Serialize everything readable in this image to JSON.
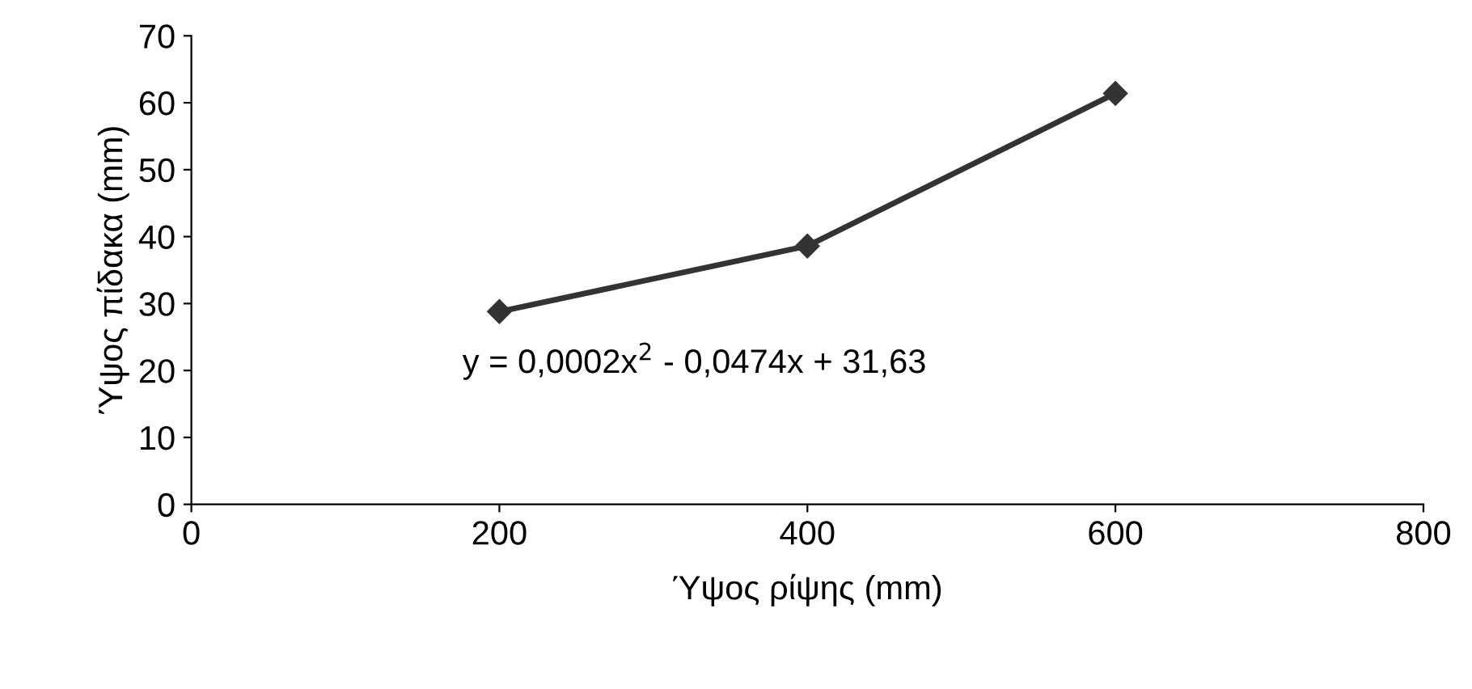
{
  "chart_data": {
    "type": "line",
    "xlabel": "Ύψος ρίψης (mm)",
    "ylabel": "Ύψος πίδακα (mm)",
    "x": [
      200,
      400,
      600
    ],
    "series": [
      {
        "color": "#333333",
        "values": [
          28.8,
          38.6,
          61.4
        ]
      }
    ],
    "marker": "diamond",
    "line_style": "solid",
    "xlim": [
      0,
      800
    ],
    "xticks": [
      0,
      200,
      400,
      600,
      800
    ],
    "ylim": [
      0,
      70
    ],
    "yticks": [
      0,
      10,
      20,
      30,
      40,
      50,
      60,
      70
    ],
    "grid": false,
    "legend": false,
    "annotations": [
      "y = 0,0002x$^{2}$ - 0,0474x + 31,63"
    ]
  }
}
